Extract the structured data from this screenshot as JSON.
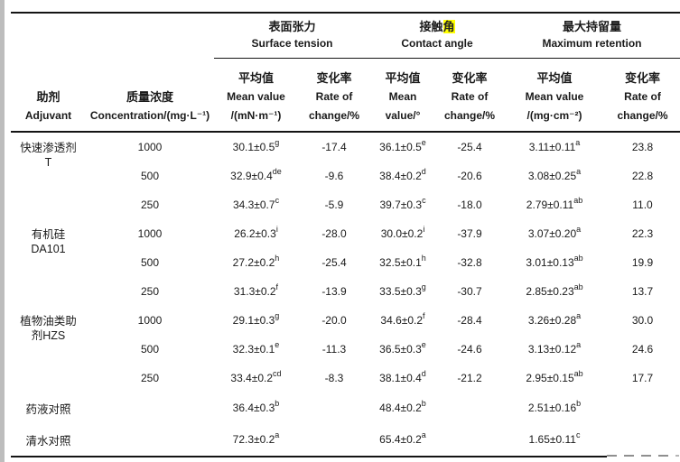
{
  "page": {
    "background": "#ffffff",
    "edge_strip_color": "#bdbdbd",
    "highlight_color": "#ffff00"
  },
  "table": {
    "header": {
      "adjuvant": {
        "zh": "助剂",
        "en": "Adjuvant"
      },
      "concentration": {
        "zh": "质量浓度",
        "en": "Concentration/(mg·L⁻¹)"
      },
      "groups": [
        {
          "zh": "表面张力",
          "en": "Surface tension"
        },
        {
          "zh_pre": "接触",
          "zh_highlight": "角",
          "en": "Contact angle"
        },
        {
          "zh": "最大持留量",
          "en": "Maximum retention"
        }
      ],
      "subcols": [
        {
          "zh": "平均值",
          "en_lines": [
            "Mean value",
            "/(mN·m⁻¹)"
          ]
        },
        {
          "zh": "变化率",
          "en_lines": [
            "Rate of",
            "change/%"
          ]
        },
        {
          "zh": "平均值",
          "en_lines": [
            "Mean",
            "value/°"
          ]
        },
        {
          "zh": "变化率",
          "en_lines": [
            "Rate of",
            "change/%"
          ]
        },
        {
          "zh": "平均值",
          "en_lines": [
            "Mean value",
            "/(mg·cm⁻²)"
          ]
        },
        {
          "zh": "变化率",
          "en_lines": [
            "Rate of",
            "change/%"
          ]
        }
      ]
    },
    "groups": [
      {
        "adjuvant": "快速渗透剂T",
        "adjuvant_lines": [
          "快速渗透剂",
          "T"
        ],
        "rows": [
          {
            "conc": "1000",
            "st_mean": "30.1±0.5",
            "st_sup": "g",
            "st_rate": "-17.4",
            "ca_mean": "36.1±0.5",
            "ca_sup": "e",
            "ca_rate": "-25.4",
            "mr_mean": "3.11±0.11",
            "mr_sup": "a",
            "mr_rate": "23.8"
          },
          {
            "conc": "500",
            "st_mean": "32.9±0.4",
            "st_sup": "de",
            "st_rate": "-9.6",
            "ca_mean": "38.4±0.2",
            "ca_sup": "d",
            "ca_rate": "-20.6",
            "mr_mean": "3.08±0.25",
            "mr_sup": "a",
            "mr_rate": "22.8"
          },
          {
            "conc": "250",
            "st_mean": "34.3±0.7",
            "st_sup": "c",
            "st_rate": "-5.9",
            "ca_mean": "39.7±0.3",
            "ca_sup": "c",
            "ca_rate": "-18.0",
            "mr_mean": "2.79±0.11",
            "mr_sup": "ab",
            "mr_rate": "11.0"
          }
        ]
      },
      {
        "adjuvant": "有机硅DA101",
        "adjuvant_lines": [
          "有机硅",
          "DA101"
        ],
        "rows": [
          {
            "conc": "1000",
            "st_mean": "26.2±0.3",
            "st_sup": "i",
            "st_rate": "-28.0",
            "ca_mean": "30.0±0.2",
            "ca_sup": "i",
            "ca_rate": "-37.9",
            "mr_mean": "3.07±0.20",
            "mr_sup": "a",
            "mr_rate": "22.3"
          },
          {
            "conc": "500",
            "st_mean": "27.2±0.2",
            "st_sup": "h",
            "st_rate": "-25.4",
            "ca_mean": "32.5±0.1",
            "ca_sup": "h",
            "ca_rate": "-32.8",
            "mr_mean": "3.01±0.13",
            "mr_sup": "ab",
            "mr_rate": "19.9"
          },
          {
            "conc": "250",
            "st_mean": "31.3±0.2",
            "st_sup": "f",
            "st_rate": "-13.9",
            "ca_mean": "33.5±0.3",
            "ca_sup": "g",
            "ca_rate": "-30.7",
            "mr_mean": "2.85±0.23",
            "mr_sup": "ab",
            "mr_rate": "13.7"
          }
        ]
      },
      {
        "adjuvant": "植物油类助剂HZS",
        "adjuvant_lines": [
          "植物油类助",
          "剂HZS"
        ],
        "rows": [
          {
            "conc": "1000",
            "st_mean": "29.1±0.3",
            "st_sup": "g",
            "st_rate": "-20.0",
            "ca_mean": "34.6±0.2",
            "ca_sup": "f",
            "ca_rate": "-28.4",
            "mr_mean": "3.26±0.28",
            "mr_sup": "a",
            "mr_rate": "30.0"
          },
          {
            "conc": "500",
            "st_mean": "32.3±0.1",
            "st_sup": "e",
            "st_rate": "-11.3",
            "ca_mean": "36.5±0.3",
            "ca_sup": "e",
            "ca_rate": "-24.6",
            "mr_mean": "3.13±0.12",
            "mr_sup": "a",
            "mr_rate": "24.6"
          },
          {
            "conc": "250",
            "st_mean": "33.4±0.2",
            "st_sup": "cd",
            "st_rate": "-8.3",
            "ca_mean": "38.1±0.4",
            "ca_sup": "d",
            "ca_rate": "-21.2",
            "mr_mean": "2.95±0.15",
            "mr_sup": "ab",
            "mr_rate": "17.7"
          }
        ]
      }
    ],
    "controls": [
      {
        "adjuvant": "药液对照",
        "st_mean": "36.4±0.3",
        "st_sup": "b",
        "ca_mean": "48.4±0.2",
        "ca_sup": "b",
        "mr_mean": "2.51±0.16",
        "mr_sup": "b"
      },
      {
        "adjuvant": "清水对照",
        "st_mean": "72.3±0.2",
        "st_sup": "a",
        "ca_mean": "65.4±0.2",
        "ca_sup": "a",
        "mr_mean": "1.65±0.11",
        "mr_sup": "c"
      }
    ]
  }
}
